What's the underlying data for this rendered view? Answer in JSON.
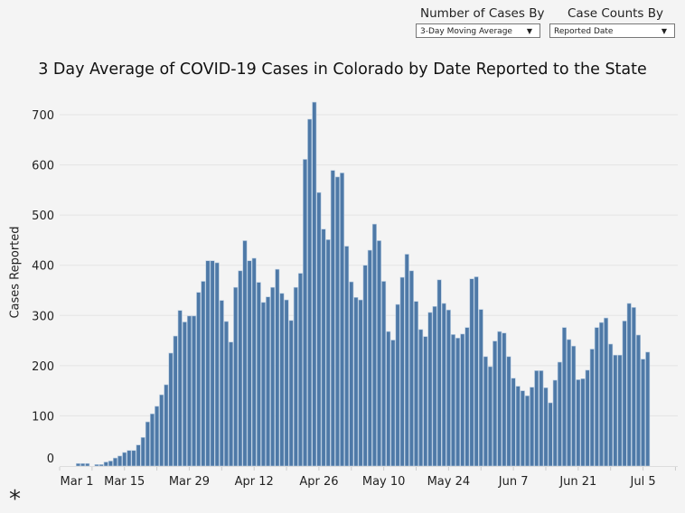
{
  "controls": {
    "cases_by": {
      "label": "Number of Cases By",
      "selected": "3-Day Moving Average"
    },
    "counts_by": {
      "label": "Case Counts By",
      "selected": "Reported Date"
    },
    "dropdown_arrow": "▼"
  },
  "footer_symbol": "*",
  "chart_data": {
    "type": "bar",
    "title": "3 Day Average of COVID-19 Cases in Colorado by Date Reported to the State",
    "xlabel": "",
    "ylabel": "Cases Reported",
    "ylim": [
      0,
      700
    ],
    "yticks": [
      0,
      100,
      200,
      300,
      400,
      500,
      600,
      700
    ],
    "xlim_days_from_mar1": [
      0,
      133.5
    ],
    "xticks": [
      {
        "label": "Mar 1",
        "day": 0
      },
      {
        "label": "Mar 15",
        "day": 14
      },
      {
        "label": "Mar 29",
        "day": 28
      },
      {
        "label": "Apr 12",
        "day": 42
      },
      {
        "label": "Apr 26",
        "day": 56
      },
      {
        "label": "May 10",
        "day": 70
      },
      {
        "label": "May 24",
        "day": 84
      },
      {
        "label": "Jun 7",
        "day": 98
      },
      {
        "label": "Jun 21",
        "day": 112
      },
      {
        "label": "Jul 5",
        "day": 126
      }
    ],
    "first_bar_day": 4,
    "grid": true,
    "color": "#4e79a7",
    "values": [
      5,
      5,
      5,
      0,
      3,
      3,
      8,
      10,
      16,
      20,
      27,
      31,
      31,
      42,
      57,
      88,
      104,
      119,
      142,
      162,
      225,
      259,
      310,
      287,
      299,
      299,
      346,
      368,
      409,
      409,
      405,
      330,
      288,
      247,
      356,
      389,
      449,
      409,
      414,
      366,
      326,
      337,
      356,
      392,
      344,
      331,
      290,
      356,
      384,
      611,
      691,
      725,
      545,
      472,
      451,
      589,
      576,
      584,
      438,
      367,
      336,
      331,
      400,
      430,
      482,
      449,
      368,
      268,
      251,
      322,
      376,
      422,
      389,
      328,
      272,
      258,
      306,
      318,
      371,
      324,
      311,
      262,
      255,
      263,
      276,
      373,
      377,
      312,
      218,
      198,
      249,
      268,
      265,
      218,
      175,
      159,
      150,
      140,
      157,
      190,
      190,
      156,
      126,
      171,
      207,
      276,
      252,
      239,
      172,
      174,
      191,
      233,
      276,
      286,
      295,
      243,
      221,
      221,
      289,
      324,
      316,
      261,
      213,
      227
    ]
  }
}
